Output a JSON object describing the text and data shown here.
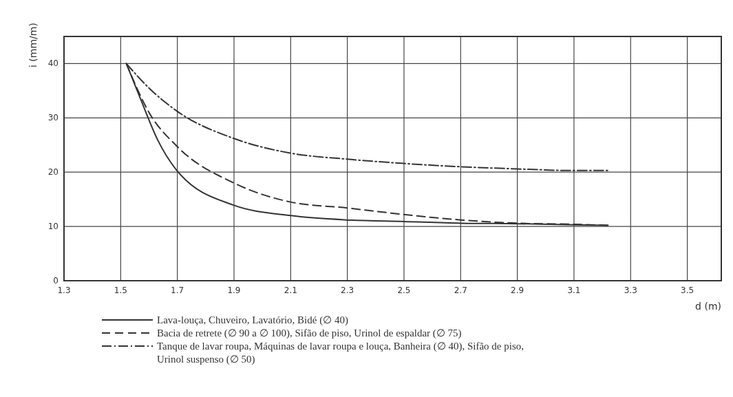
{
  "chart_data": {
    "type": "line",
    "xlabel": "d (m)",
    "ylabel": "i (mm/m)",
    "xlim": [
      1.3,
      3.62
    ],
    "ylim": [
      0,
      45
    ],
    "xticks": [
      1.3,
      1.5,
      1.7,
      1.9,
      2.1,
      2.3,
      2.5,
      2.7,
      2.9,
      3.1,
      3.3,
      3.5
    ],
    "yticks": [
      0,
      10,
      20,
      30,
      40
    ],
    "grid": true,
    "legend": "bottom",
    "series": [
      {
        "name": "Lava-louça, Chuveiro, Lavatório, Bidé (∅ 40)",
        "color": "#333333",
        "line_style": "solid",
        "x": [
          1.52,
          1.57,
          1.63,
          1.7,
          1.9,
          2.1,
          2.3,
          2.5,
          2.7,
          2.9,
          3.1,
          3.22
        ],
        "values": [
          40,
          33.5,
          26,
          20.2,
          13.9,
          12,
          11.2,
          10.9,
          10.6,
          10.5,
          10.3,
          10.2
        ]
      },
      {
        "name": "Bacia de retrete (∅ 90 a ∅ 100), Sifão de piso, Urinol de espaldar (∅ 75)",
        "color": "#333333",
        "line_style": "dashed",
        "x": [
          1.52,
          1.6,
          1.7,
          1.9,
          2.1,
          2.3,
          2.5,
          2.7,
          2.9,
          3.1,
          3.22
        ],
        "values": [
          40,
          31,
          24.7,
          18,
          14.5,
          13.4,
          12.2,
          11.2,
          10.6,
          10.4,
          10.2
        ]
      },
      {
        "name": "Tanque de lavar roupa, Máquinas de lavar roupa e louça, Banheira (∅ 40), Sifão de piso, Urinol suspenso (∅ 50)",
        "color": "#333333",
        "line_style": "dashdot",
        "x": [
          1.52,
          1.6,
          1.7,
          1.9,
          2.1,
          2.3,
          2.5,
          2.7,
          2.9,
          3.1,
          3.22
        ],
        "values": [
          40,
          35.5,
          31.2,
          26.2,
          23.5,
          22.4,
          21.6,
          21,
          20.6,
          20.3,
          20.3
        ]
      }
    ]
  }
}
